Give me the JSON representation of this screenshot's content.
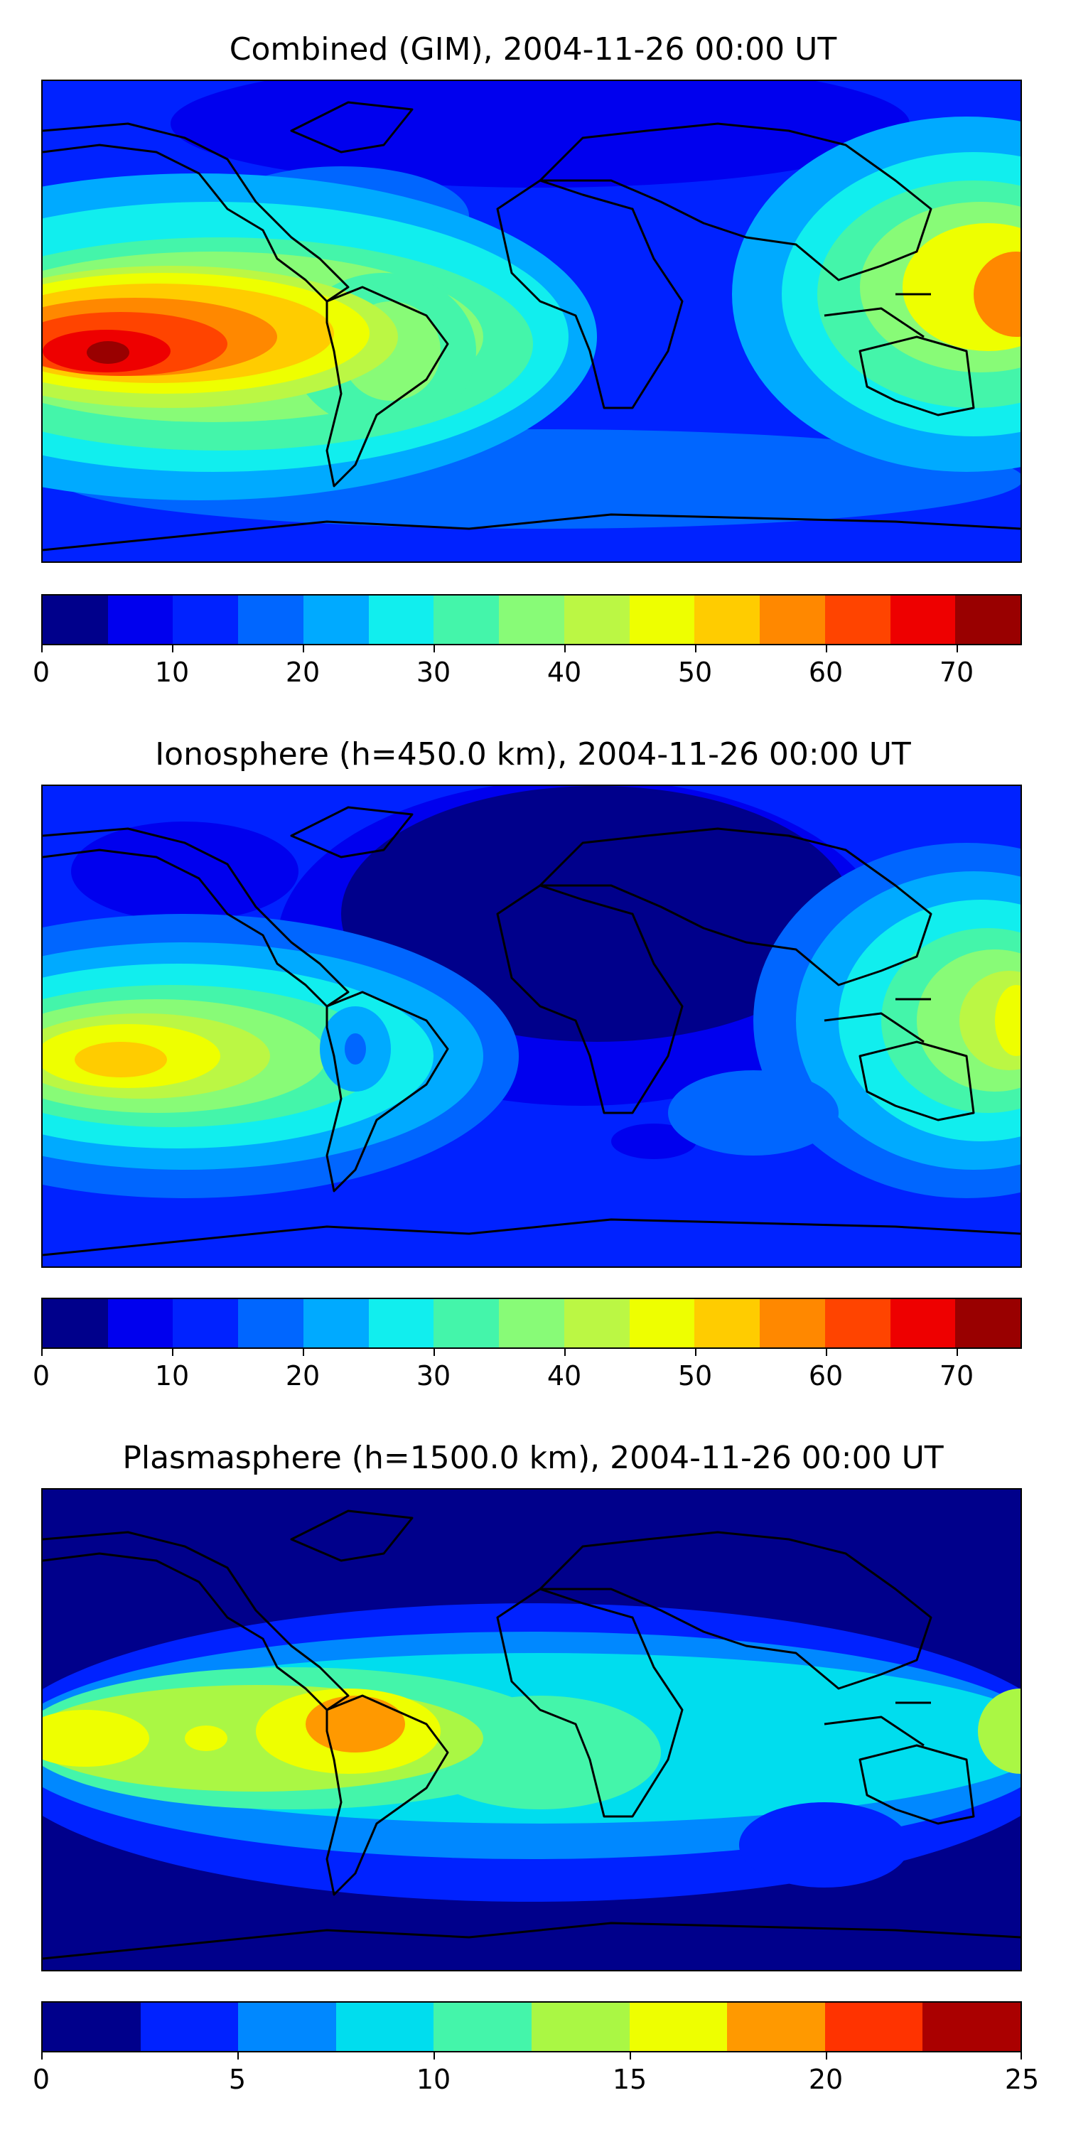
{
  "panels": [
    {
      "title": "Combined (GIM), 2004-11-26 00:00 UT",
      "colorbar": {
        "min": 0,
        "max": 75,
        "ticks": [
          "0",
          "10",
          "20",
          "30",
          "40",
          "50",
          "60",
          "70"
        ],
        "tick_values": [
          0,
          10,
          20,
          30,
          40,
          50,
          60,
          70
        ],
        "colors": [
          "#00008b",
          "#0000ee",
          "#0022ff",
          "#0066ff",
          "#00aaff",
          "#11eeee",
          "#44f5aa",
          "#88fb77",
          "#bbf744",
          "#eeff00",
          "#ffcc00",
          "#ff8800",
          "#ff4400",
          "#ee0000",
          "#990000"
        ]
      }
    },
    {
      "title": "Ionosphere  (h=450.0 km), 2004-11-26 00:00 UT",
      "colorbar": {
        "min": 0,
        "max": 75,
        "ticks": [
          "0",
          "10",
          "20",
          "30",
          "40",
          "50",
          "60",
          "70"
        ],
        "tick_values": [
          0,
          10,
          20,
          30,
          40,
          50,
          60,
          70
        ],
        "colors": [
          "#00008b",
          "#0000ee",
          "#0022ff",
          "#0066ff",
          "#00aaff",
          "#11eeee",
          "#44f5aa",
          "#88fb77",
          "#bbf744",
          "#eeff00",
          "#ffcc00",
          "#ff8800",
          "#ff4400",
          "#ee0000",
          "#990000"
        ]
      }
    },
    {
      "title": "Plasmasphere (h=1500.0 km), 2004-11-26 00:00 UT",
      "colorbar": {
        "min": 0,
        "max": 25,
        "ticks": [
          "0",
          "5",
          "10",
          "15",
          "20",
          "25"
        ],
        "tick_values": [
          0,
          5,
          10,
          15,
          20,
          25
        ],
        "colors": [
          "#00008b",
          "#0022ff",
          "#0088ff",
          "#00ddee",
          "#44f5aa",
          "#aaf744",
          "#eeff00",
          "#ff9900",
          "#ff3300",
          "#aa0000"
        ]
      }
    }
  ]
}
